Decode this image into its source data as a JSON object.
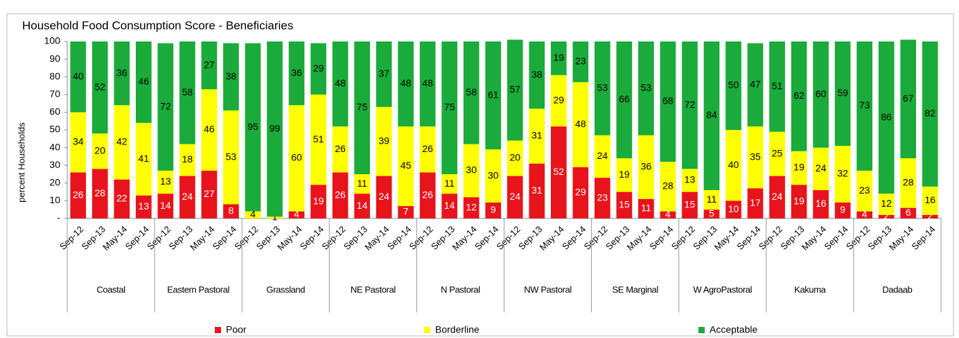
{
  "chart_data": {
    "type": "stacked_bar",
    "title": "Household Food Consumption Score - Beneficiaries",
    "y_label": "percent Households",
    "categories": [
      "Sep-12",
      "Sep-13",
      "May-14",
      "Sep-14",
      "Sep-12",
      "Sep-13",
      "May-14",
      "Sep-14",
      "Sep-12",
      "Sep-13",
      "May-14",
      "Sep-14",
      "Sep-12",
      "Sep-13",
      "May-14",
      "Sep-14",
      "Sep-12",
      "Sep-13",
      "May-14",
      "Sep-14",
      "Sep-12",
      "Sep-13",
      "May-14",
      "Sep-14",
      "Sep-12",
      "Sep-13",
      "May-14",
      "Sep-14",
      "Sep-12",
      "Sep-13",
      "May-14",
      "Sep-14",
      "Sep-12",
      "Sep-13",
      "May-14",
      "Sep-14",
      "Sep-12",
      "Sep-13",
      "May-14",
      "Sep-14"
    ],
    "groups": [
      "Coastal",
      "Eastern Pastoral",
      "Grassland",
      "NE Pastoral",
      "N Pastoral",
      "NW Pastoral",
      "SE Marginal",
      "W AgroPastoral",
      "Kakuma",
      "Dadaab"
    ],
    "series": [
      {
        "name": "Poor",
        "color": "#e8141c",
        "values": [
          26,
          28,
          22,
          13,
          14,
          24,
          27,
          8,
          0,
          0,
          4,
          19,
          26,
          14,
          24,
          7,
          26,
          14,
          12,
          9,
          24,
          31,
          52,
          29,
          23,
          15,
          11,
          4,
          15,
          5,
          10,
          17,
          24,
          19,
          16,
          9,
          4,
          2,
          6,
          2
        ]
      },
      {
        "name": "Borderline",
        "color": "#ffff00",
        "values": [
          34,
          20,
          42,
          41,
          13,
          18,
          46,
          53,
          4,
          1,
          60,
          51,
          26,
          11,
          39,
          45,
          26,
          11,
          30,
          30,
          20,
          31,
          29,
          48,
          24,
          19,
          36,
          28,
          13,
          11,
          40,
          35,
          25,
          19,
          24,
          32,
          23,
          12,
          28,
          16
        ]
      },
      {
        "name": "Acceptable",
        "color": "#1aab3a",
        "values": [
          40,
          52,
          36,
          46,
          72,
          58,
          27,
          38,
          95,
          99,
          36,
          29,
          48,
          75,
          37,
          48,
          48,
          75,
          58,
          61,
          57,
          38,
          19,
          23,
          53,
          66,
          53,
          68,
          72,
          84,
          50,
          47,
          51,
          62,
          60,
          59,
          73,
          86,
          67,
          82
        ]
      }
    ],
    "ylim": [
      0,
      100
    ],
    "yticks": [
      {
        "value": 0,
        "label": "-"
      },
      10,
      20,
      30,
      40,
      50,
      60,
      70,
      80,
      90,
      100
    ]
  }
}
